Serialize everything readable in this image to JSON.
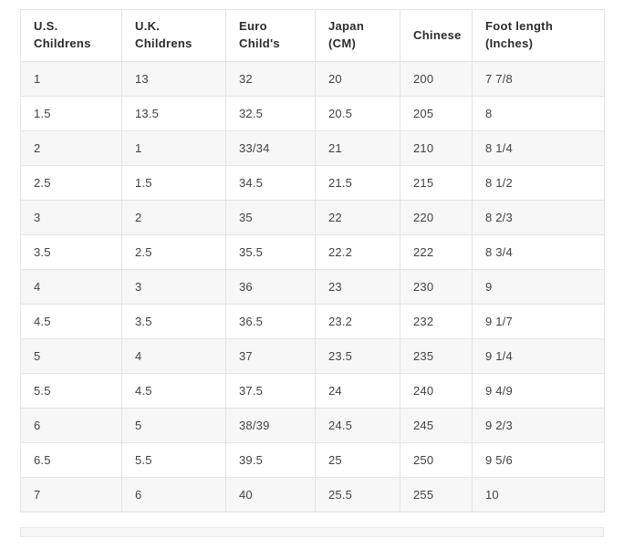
{
  "colors": {
    "row_stripe": "#f7f7f7",
    "grid_border": "#e3e3e3",
    "cell_text": "#424242",
    "header_text": "#2b2b2b",
    "page_background": "#ffffff"
  },
  "table": {
    "columns": [
      "U.S.\nChildrens",
      "U.K.\nChildrens",
      "Euro\nChild's",
      "Japan\n(CM)",
      "Chinese",
      "Foot length\n(Inches)"
    ],
    "rows": [
      [
        "1",
        "13",
        "32",
        "20",
        "200",
        "7 7/8"
      ],
      [
        "1.5",
        "13.5",
        "32.5",
        "20.5",
        "205",
        "8"
      ],
      [
        "2",
        "1",
        "33/34",
        "21",
        "210",
        "8 1/4"
      ],
      [
        "2.5",
        "1.5",
        "34.5",
        "21.5",
        "215",
        "8 1/2"
      ],
      [
        "3",
        "2",
        "35",
        "22",
        "220",
        "8 2/3"
      ],
      [
        "3.5",
        "2.5",
        "35.5",
        "22.2",
        "222",
        "8 3/4"
      ],
      [
        "4",
        "3",
        "36",
        "23",
        "230",
        "9"
      ],
      [
        "4.5",
        "3.5",
        "36.5",
        "23.2",
        "232",
        "9 1/7"
      ],
      [
        "5",
        "4",
        "37",
        "23.5",
        "235",
        "9 1/4"
      ],
      [
        "5.5",
        "4.5",
        "37.5",
        "24",
        "240",
        "9 4/9"
      ],
      [
        "6",
        "5",
        "38/39",
        "24.5",
        "245",
        "9 2/3"
      ],
      [
        "6.5",
        "5.5",
        "39.5",
        "25",
        "250",
        "9 5/6"
      ],
      [
        "7",
        "6",
        "40",
        "25.5",
        "255",
        "10"
      ]
    ]
  },
  "chart_data": {
    "type": "table",
    "title": "",
    "columns": [
      "U.S. Childrens",
      "U.K. Childrens",
      "Euro Child's",
      "Japan (CM)",
      "Chinese",
      "Foot length (Inches)"
    ],
    "rows": [
      [
        "1",
        "13",
        "32",
        "20",
        "200",
        "7 7/8"
      ],
      [
        "1.5",
        "13.5",
        "32.5",
        "20.5",
        "205",
        "8"
      ],
      [
        "2",
        "1",
        "33/34",
        "21",
        "210",
        "8 1/4"
      ],
      [
        "2.5",
        "1.5",
        "34.5",
        "21.5",
        "215",
        "8 1/2"
      ],
      [
        "3",
        "2",
        "35",
        "22",
        "220",
        "8 2/3"
      ],
      [
        "3.5",
        "2.5",
        "35.5",
        "22.2",
        "222",
        "8 3/4"
      ],
      [
        "4",
        "3",
        "36",
        "23",
        "230",
        "9"
      ],
      [
        "4.5",
        "3.5",
        "36.5",
        "23.2",
        "232",
        "9 1/7"
      ],
      [
        "5",
        "4",
        "37",
        "23.5",
        "235",
        "9 1/4"
      ],
      [
        "5.5",
        "4.5",
        "37.5",
        "24",
        "240",
        "9 4/9"
      ],
      [
        "6",
        "5",
        "38/39",
        "24.5",
        "245",
        "9 2/3"
      ],
      [
        "6.5",
        "5.5",
        "39.5",
        "25",
        "250",
        "9 5/6"
      ],
      [
        "7",
        "6",
        "40",
        "25.5",
        "255",
        "10"
      ]
    ]
  }
}
